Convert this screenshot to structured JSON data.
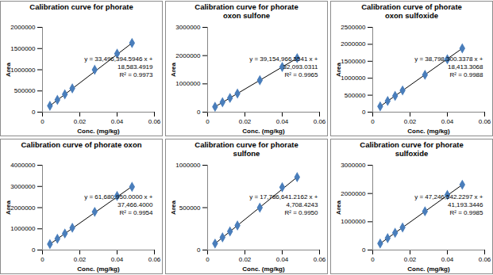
{
  "chart_data": [
    {
      "type": "scatter",
      "title": "Calibration curve for phorate",
      "x_label": "Conc. (mg/kg)",
      "y_label": "Area",
      "x": [
        0.004,
        0.008,
        0.012,
        0.016,
        0.028,
        0.04,
        0.048
      ],
      "values": [
        150000,
        290000,
        420000,
        560000,
        1000000,
        1380000,
        1630000
      ],
      "color": "#4a7ebb",
      "marker": "diamond",
      "trendline": {
        "x": [
          0.004,
          0.048
        ],
        "values": [
          150000,
          1630000
        ],
        "color": "#000000"
      },
      "annotations": [
        "y = 33,496,394.5946 x +",
        "18,583.4919",
        "R² = 0.9973"
      ],
      "xlim": [
        0,
        0.06
      ],
      "xticks": [
        0,
        0.02,
        0.04,
        0.06
      ],
      "ylim": [
        0,
        2000000
      ],
      "yticks": [
        0,
        500000,
        1000000,
        1500000,
        2000000
      ]
    },
    {
      "type": "scatter",
      "title": "Calibration curve for phorate\noxon sulfone",
      "x_label": "Conc. (mg/kg)",
      "y_label": "Area",
      "x": [
        0.004,
        0.008,
        0.012,
        0.016,
        0.028,
        0.04,
        0.048
      ],
      "values": [
        190000,
        350000,
        500000,
        660000,
        1130000,
        1600000,
        1910000
      ],
      "color": "#4a7ebb",
      "marker": "diamond",
      "trendline": {
        "x": [
          0.004,
          0.048
        ],
        "values": [
          190000,
          1910000
        ],
        "color": "#000000"
      },
      "annotations": [
        "y = 39,154,966.5541 x +",
        "32,093.0311",
        "R² = 0.9965"
      ],
      "xlim": [
        0,
        0.06
      ],
      "xticks": [
        0,
        0.02,
        0.04,
        0.06
      ],
      "ylim": [
        0,
        3000000
      ],
      "yticks": [
        0,
        1000000,
        2000000,
        3000000
      ]
    },
    {
      "type": "scatter",
      "title": "Calibration curve of phorate\noxon sulfoxide",
      "x_label": "Conc. (mg/kg)",
      "y_label": "Area",
      "x": [
        0.004,
        0.008,
        0.012,
        0.016,
        0.028,
        0.04,
        0.048
      ],
      "values": [
        170000,
        330000,
        480000,
        640000,
        1100000,
        1560000,
        1880000
      ],
      "color": "#4a7ebb",
      "marker": "diamond",
      "trendline": {
        "x": [
          0.004,
          0.048
        ],
        "values": [
          170000,
          1880000
        ],
        "color": "#000000"
      },
      "annotations": [
        "y = 38,798,300.3378 x +",
        "18,413.3068",
        "R² = 0.9988"
      ],
      "xlim": [
        0,
        0.06
      ],
      "xticks": [
        0,
        0.02,
        0.04,
        0.06
      ],
      "ylim": [
        0,
        2500000
      ],
      "yticks": [
        0,
        500000,
        1000000,
        1500000,
        2000000,
        2500000
      ]
    },
    {
      "type": "scatter",
      "title": "Calibration curve of phorate oxon",
      "x_label": "Conc. (mg/kg)",
      "y_label": "Area",
      "x": [
        0.004,
        0.008,
        0.012,
        0.016,
        0.028,
        0.04,
        0.048
      ],
      "values": [
        280000,
        530000,
        780000,
        1050000,
        1800000,
        2550000,
        2980000
      ],
      "color": "#4a7ebb",
      "marker": "diamond",
      "trendline": {
        "x": [
          0.004,
          0.048
        ],
        "values": [
          280000,
          3000000
        ],
        "color": "#000000"
      },
      "annotations": [
        "y = 61,680,950.0000 x +",
        "37,466.4000",
        "R² = 0.9954"
      ],
      "xlim": [
        0,
        0.06
      ],
      "xticks": [
        0,
        0.02,
        0.04,
        0.06
      ],
      "ylim": [
        0,
        4000000
      ],
      "yticks": [
        0,
        1000000,
        2000000,
        3000000,
        4000000
      ]
    },
    {
      "type": "scatter",
      "title": "Calibration curve for phorate\nsulfone",
      "x_label": "Conc. (mg/kg)",
      "y_label": "Area",
      "x": [
        0.004,
        0.008,
        0.012,
        0.016,
        0.028,
        0.04,
        0.048
      ],
      "values": [
        76000,
        150000,
        220000,
        290000,
        500000,
        740000,
        860000
      ],
      "color": "#4a7ebb",
      "marker": "diamond",
      "trendline": {
        "x": [
          0.004,
          0.048
        ],
        "values": [
          76000,
          860000
        ],
        "color": "#000000"
      },
      "annotations": [
        "y = 17,786,641.2162 x +",
        "4,708.4243",
        "R² = 0.9950"
      ],
      "xlim": [
        0,
        0.06
      ],
      "xticks": [
        0,
        0.02,
        0.04,
        0.06
      ],
      "ylim": [
        0,
        1000000
      ],
      "yticks": [
        0,
        500000,
        1000000
      ]
    },
    {
      "type": "scatter",
      "title": "Calibration curve for phorate\nsulfoxide",
      "x_label": "Conc. (mg/kg)",
      "y_label": "Area",
      "x": [
        0.004,
        0.008,
        0.012,
        0.016,
        0.028,
        0.04,
        0.048
      ],
      "values": [
        230000,
        420000,
        610000,
        800000,
        1370000,
        1950000,
        2310000
      ],
      "color": "#4a7ebb",
      "marker": "diamond",
      "trendline": {
        "x": [
          0.004,
          0.048
        ],
        "values": [
          230000,
          2310000
        ],
        "color": "#000000"
      },
      "annotations": [
        "y = 47,246,542.2297 x +",
        "41,193.3446",
        "R² = 0.9985"
      ],
      "xlim": [
        0,
        0.06
      ],
      "xticks": [
        0,
        0.02,
        0.04,
        0.06
      ],
      "ylim": [
        0,
        3000000
      ],
      "yticks": [
        0,
        1000000,
        2000000,
        3000000
      ]
    }
  ]
}
